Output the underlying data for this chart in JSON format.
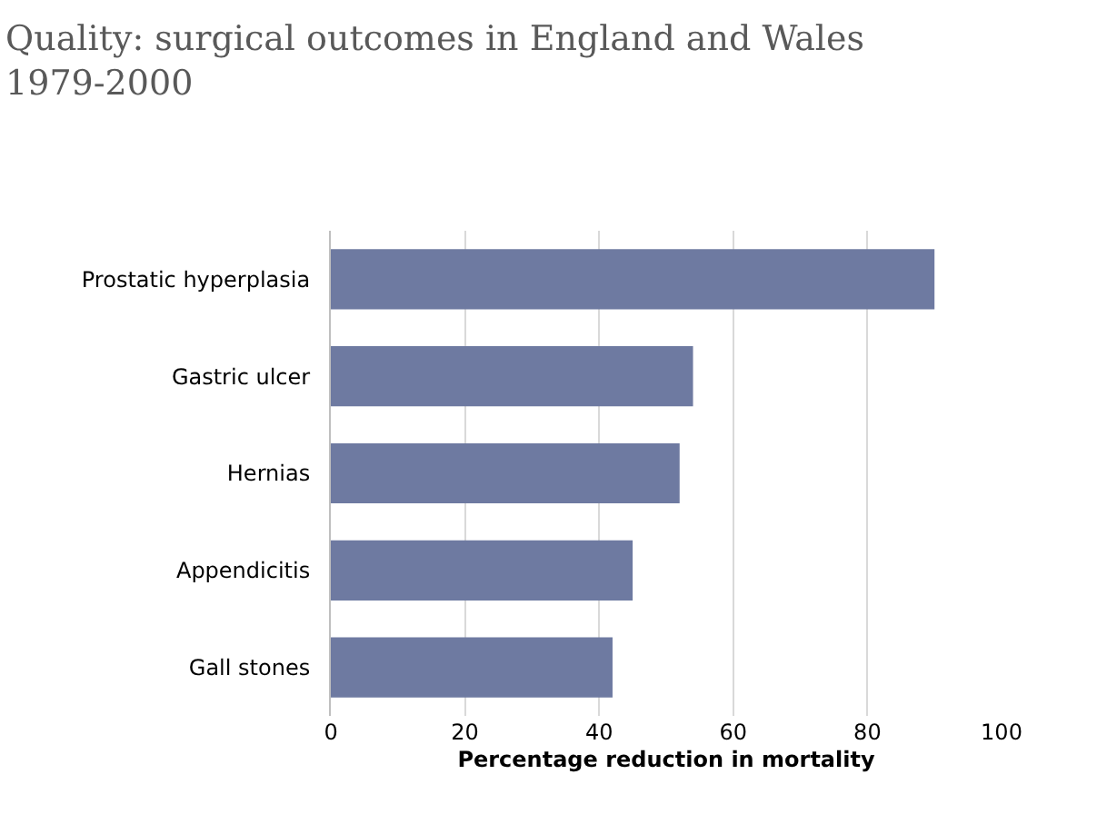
{
  "chart_data": {
    "type": "bar",
    "orientation": "horizontal",
    "title": "Quality: surgical outcomes in England and Wales\n1979-2000",
    "xlabel": "Percentage reduction in mortality",
    "categories": [
      "Prostatic hyperplasia",
      "Gastric ulcer",
      "Hernias",
      "Appendicitis",
      "Gall stones"
    ],
    "values": [
      90,
      54,
      52,
      45,
      42
    ],
    "color": "#6e7aa1",
    "xlim": [
      0,
      100
    ],
    "xticks": [
      0,
      20,
      40,
      60,
      80,
      100
    ],
    "grid": "x"
  }
}
